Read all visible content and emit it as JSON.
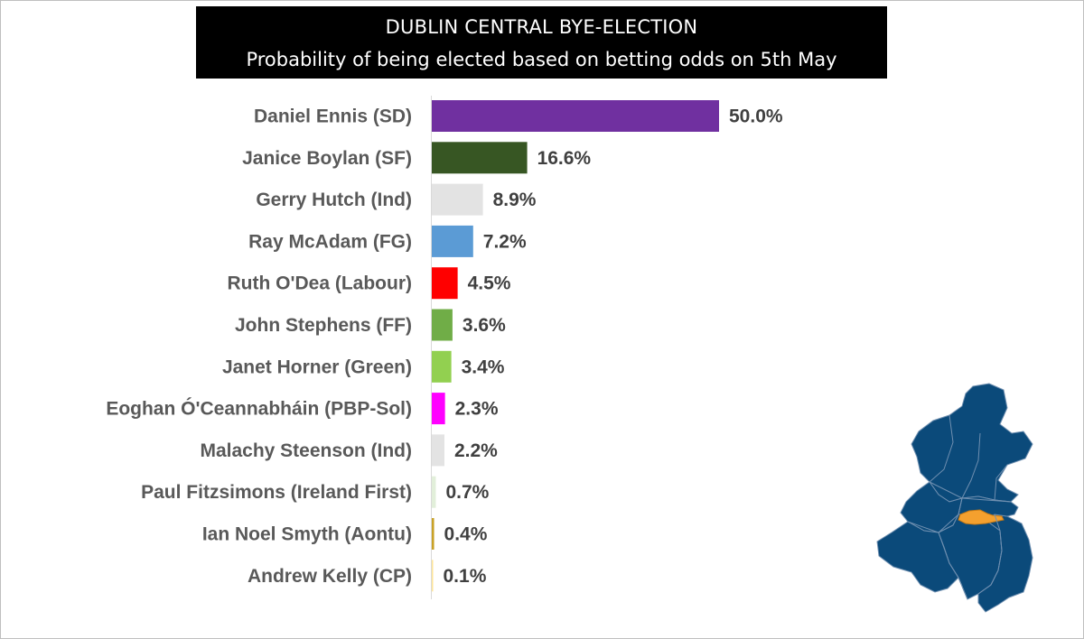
{
  "title": {
    "line1": "DUBLIN CENTRAL BYE-ELECTION",
    "line2": "Probability of being elected based on betting odds on 5th May"
  },
  "chart_data": {
    "type": "bar",
    "orientation": "horizontal",
    "title": "DUBLIN CENTRAL BYE-ELECTION — Probability of being elected based on betting odds on 5th May",
    "categories": [
      "Daniel Ennis (SD)",
      "Janice Boylan (SF)",
      "Gerry Hutch (Ind)",
      "Ray McAdam (FG)",
      "Ruth O'Dea (Labour)",
      "John Stephens (FF)",
      "Janet Horner (Green)",
      "Eoghan Ó'Ceannabháin (PBP-Sol)",
      "Malachy Steenson (Ind)",
      "Paul Fitzsimons (Ireland First)",
      "Ian Noel Smyth (Aontu)",
      "Andrew Kelly (CP)"
    ],
    "values": [
      50.0,
      16.6,
      8.9,
      7.2,
      4.5,
      3.6,
      3.4,
      2.3,
      2.2,
      0.7,
      0.4,
      0.1
    ],
    "value_labels": [
      "50.0%",
      "16.6%",
      "8.9%",
      "7.2%",
      "4.5%",
      "3.6%",
      "3.4%",
      "2.3%",
      "2.2%",
      "0.7%",
      "0.4%",
      "0.1%"
    ],
    "colors": [
      "#7030A0",
      "#375623",
      "#E3E3E3",
      "#5B9BD5",
      "#FF0000",
      "#70AD47",
      "#92D050",
      "#FF00FF",
      "#E3E3E3",
      "#E2EFDA",
      "#C9A227",
      "#FFE699"
    ],
    "xlim": [
      0,
      50
    ],
    "grid": false,
    "legend": "none"
  },
  "map": {
    "region_color": "#0B4A7A",
    "highlight_color": "#F4A02E",
    "border_color": "#6F8FB0"
  }
}
